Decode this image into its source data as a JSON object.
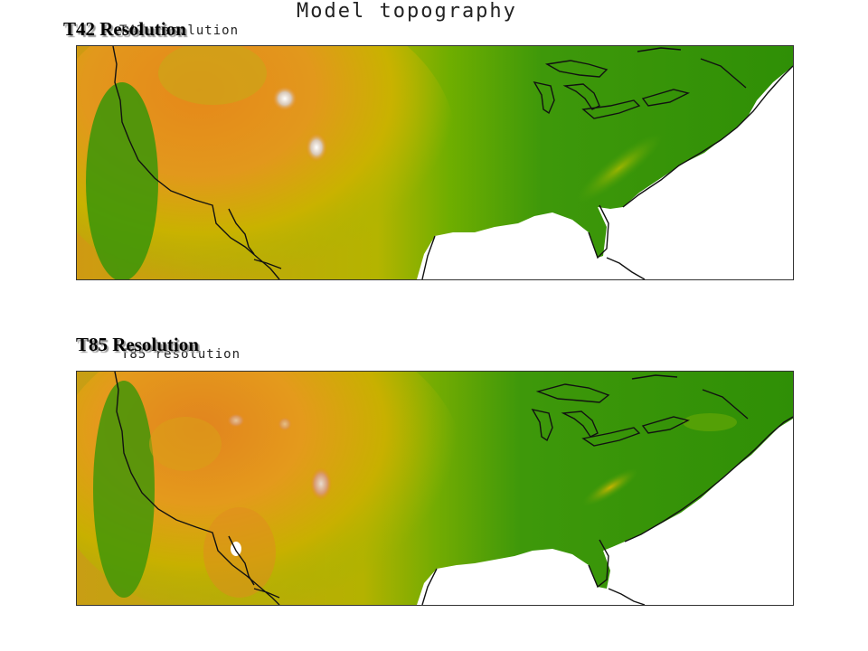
{
  "header": {
    "main_title": "Model topography"
  },
  "panels": [
    {
      "overlay_title": "T42 Resolution",
      "small_title": "T42 resolution"
    },
    {
      "overlay_title": "T85 Resolution",
      "small_title": "T85 resolution"
    }
  ],
  "colors": {
    "low_elevation": "#2f8f06",
    "mid_elevation": "#c9b200",
    "high_elevation": "#e6881a",
    "peak": "#f2f2f2",
    "coastline": "#111111"
  }
}
